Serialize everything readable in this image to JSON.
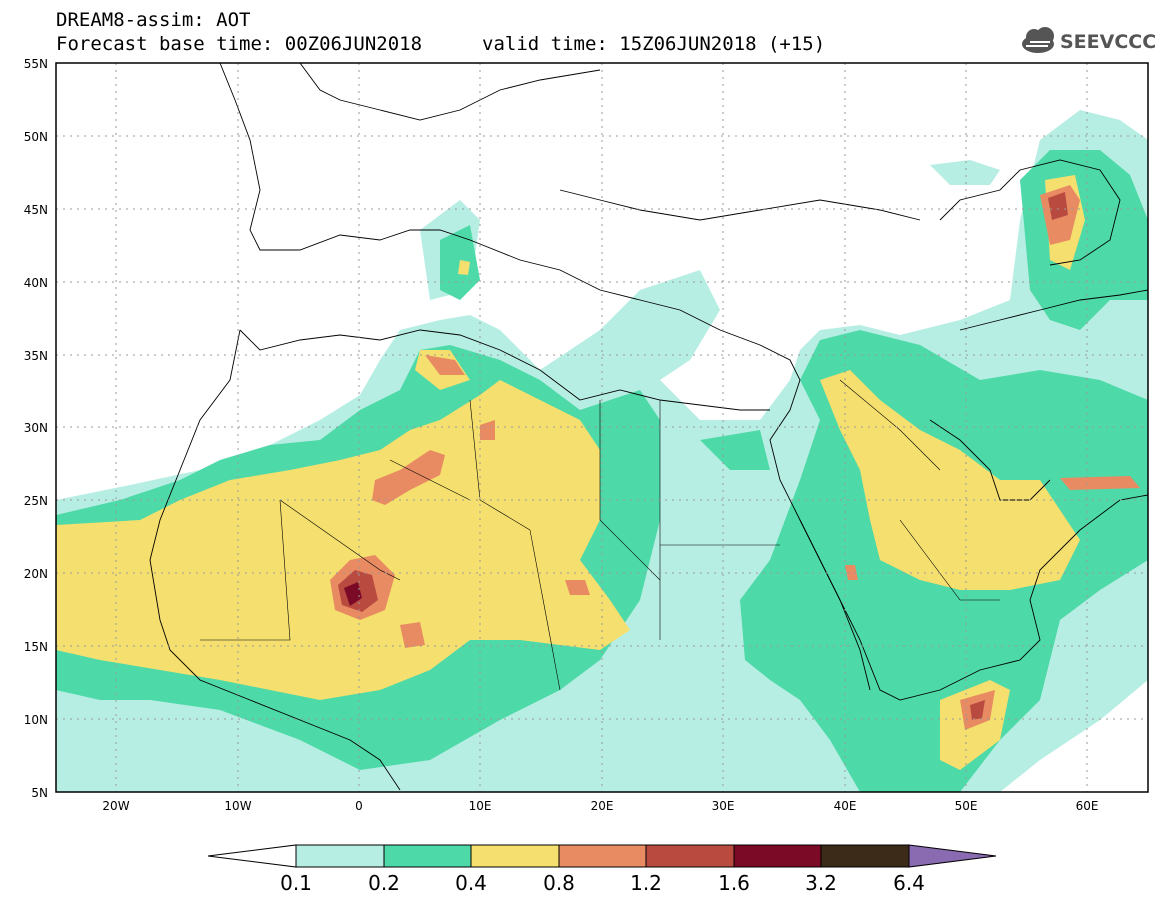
{
  "header": {
    "line1": "DREAM8-assim: AOT",
    "base_time": "Forecast base time: 00Z06JUN2018",
    "valid_time": "valid time: 15Z06JUN2018 (+15)"
  },
  "logo": {
    "text": "SEEVCCC",
    "icon": "cloud-icon"
  },
  "map": {
    "lon_range": [
      -25,
      65
    ],
    "lat_range": [
      5,
      55
    ],
    "lat_ticks": [
      "5N",
      "10N",
      "15N",
      "20N",
      "25N",
      "30N",
      "35N",
      "40N",
      "45N",
      "50N",
      "55N"
    ],
    "lon_ticks": [
      "20W",
      "10W",
      "0",
      "10E",
      "20E",
      "30E",
      "40E",
      "50E",
      "60E"
    ]
  },
  "colorbar": {
    "labels": [
      "0.1",
      "0.2",
      "0.4",
      "0.8",
      "1.2",
      "1.6",
      "3.2",
      "6.4"
    ],
    "colors": [
      "#ffffff",
      "#b7eee3",
      "#4ed9a8",
      "#f5df6e",
      "#e88b62",
      "#b94a40",
      "#7a0a25",
      "#3d2b1a",
      "#8a6ab0"
    ]
  }
}
